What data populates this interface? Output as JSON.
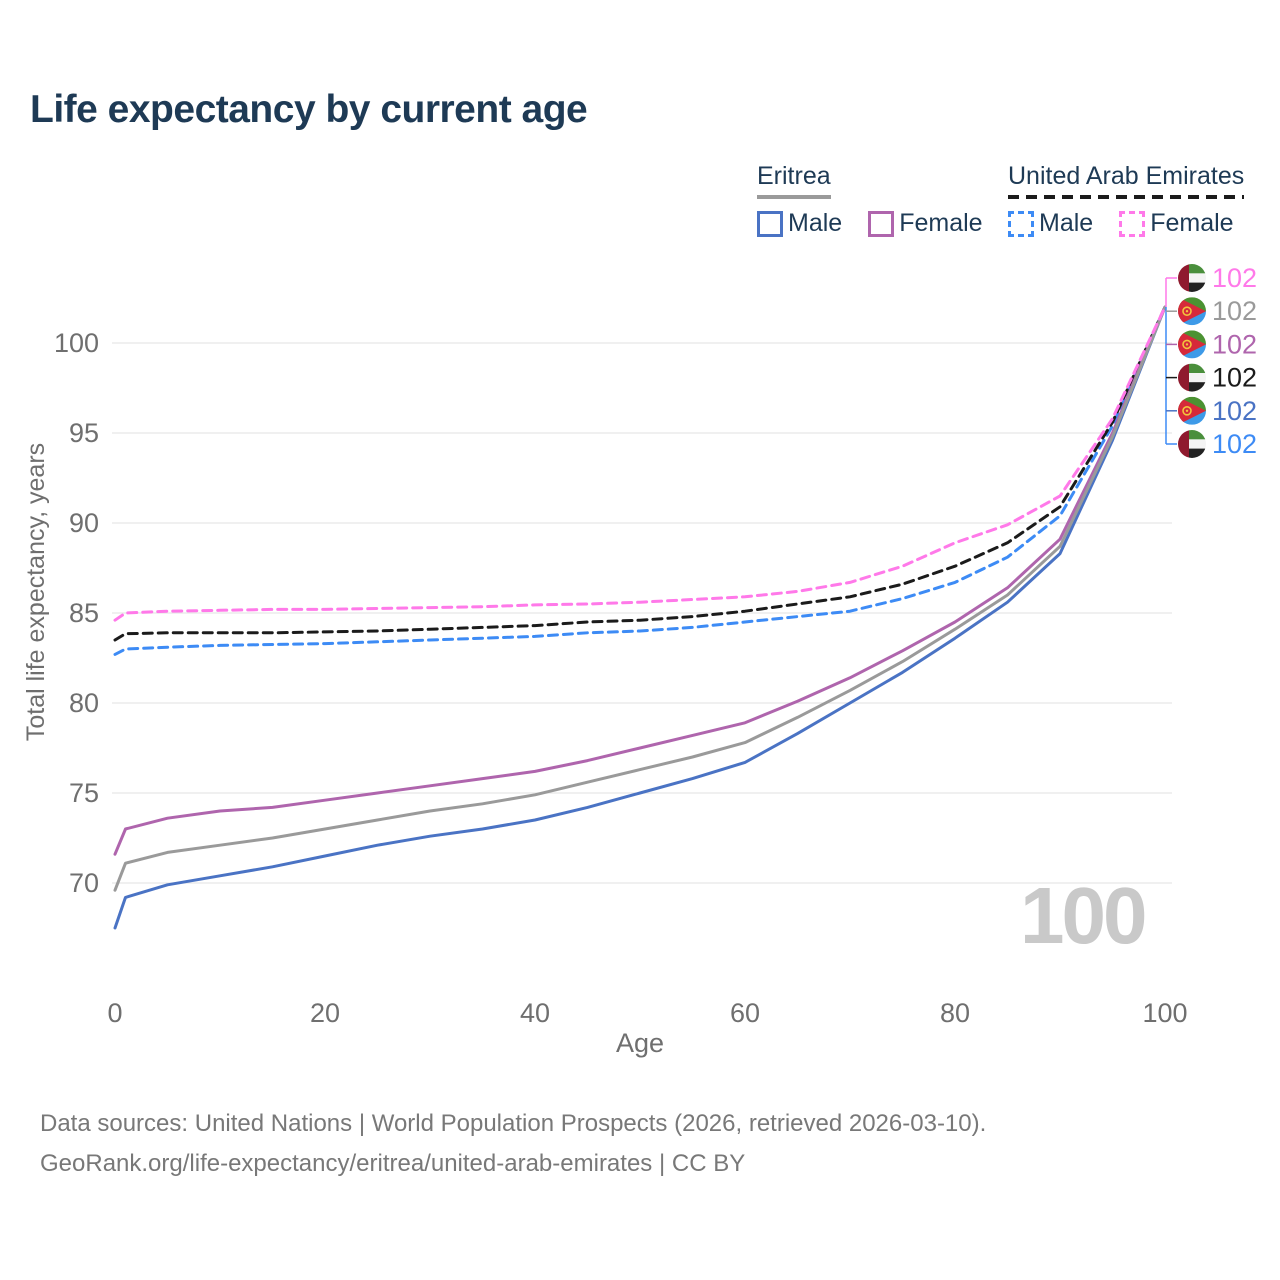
{
  "title": "Life expectancy by current age",
  "watermark": "100",
  "colors": {
    "title_text": "#1e3a55",
    "axis_text": "#6f6f6f",
    "grid": "#e7e7e7",
    "watermark": "#c9c9c9",
    "footer_text": "#787878",
    "eritrea_male": "#4a73c4",
    "eritrea_female": "#af65ad",
    "eritrea_all": "#9a9a9a",
    "uae_male": "#3d8bf5",
    "uae_female": "#ff79e9",
    "uae_all": "#1b1b1b"
  },
  "legend": {
    "groups": [
      {
        "name": "Eritrea",
        "line_style": "solid",
        "underline_color": "#9a9a9a",
        "items": [
          {
            "label": "Male",
            "color": "#4a73c4"
          },
          {
            "label": "Female",
            "color": "#af65ad"
          }
        ]
      },
      {
        "name": "United Arab Emirates",
        "line_style": "dashed",
        "underline_color": "#1b1b1b",
        "items": [
          {
            "label": "Male",
            "color": "#3d8bf5"
          },
          {
            "label": "Female",
            "color": "#ff79e9"
          }
        ]
      }
    ]
  },
  "footer": {
    "line1": "Data sources: United Nations | World Population Prospects (2026, retrieved 2026-03-10).",
    "line2": "GeoRank.org/life-expectancy/eritrea/united-arab-emirates | CC BY"
  },
  "chart_data": {
    "type": "line",
    "title": "Life expectancy by current age",
    "xlabel": "Age",
    "ylabel": "Total life expectancy, years",
    "xlim": [
      0,
      100
    ],
    "ylim": [
      67,
      103
    ],
    "xticks": [
      0,
      20,
      40,
      60,
      80,
      100
    ],
    "yticks": [
      70,
      75,
      80,
      85,
      90,
      95,
      100
    ],
    "grid": "horizontal-only",
    "legend_position": "top-right",
    "x": [
      0,
      1,
      5,
      10,
      15,
      20,
      25,
      30,
      35,
      40,
      45,
      50,
      55,
      60,
      65,
      70,
      75,
      80,
      85,
      90,
      95,
      100
    ],
    "series": [
      {
        "name": "United Arab Emirates Female",
        "country": "United Arab Emirates",
        "sex": "female",
        "color": "#ff79e9",
        "dashed": true,
        "flag": "uae",
        "end_label": "102",
        "values": [
          84.6,
          85.0,
          85.1,
          85.15,
          85.2,
          85.2,
          85.25,
          85.3,
          85.35,
          85.45,
          85.5,
          85.6,
          85.75,
          85.9,
          86.2,
          86.7,
          87.6,
          88.9,
          89.9,
          91.5,
          95.8,
          102
        ]
      },
      {
        "name": "Eritrea All",
        "country": "Eritrea",
        "sex": "all",
        "color": "#9a9a9a",
        "dashed": false,
        "flag": "eritrea",
        "end_label": "102",
        "values": [
          69.6,
          71.1,
          71.7,
          72.1,
          72.5,
          73.0,
          73.5,
          74.0,
          74.4,
          74.9,
          75.6,
          76.3,
          77.0,
          77.8,
          79.2,
          80.7,
          82.3,
          84.1,
          86.0,
          88.7,
          94.8,
          102
        ]
      },
      {
        "name": "Eritrea Female",
        "country": "Eritrea",
        "sex": "female",
        "color": "#af65ad",
        "dashed": false,
        "flag": "eritrea",
        "end_label": "102",
        "values": [
          71.6,
          73.0,
          73.6,
          74.0,
          74.2,
          74.6,
          75.0,
          75.4,
          75.8,
          76.2,
          76.8,
          77.5,
          78.2,
          78.9,
          80.1,
          81.4,
          82.9,
          84.5,
          86.4,
          89.1,
          95.0,
          102
        ]
      },
      {
        "name": "United Arab Emirates All",
        "country": "United Arab Emirates",
        "sex": "all",
        "color": "#1b1b1b",
        "dashed": true,
        "flag": "uae",
        "end_label": "102",
        "values": [
          83.5,
          83.85,
          83.9,
          83.9,
          83.9,
          83.95,
          84.0,
          84.1,
          84.2,
          84.3,
          84.5,
          84.6,
          84.8,
          85.1,
          85.5,
          85.9,
          86.6,
          87.6,
          88.9,
          90.9,
          95.6,
          102
        ]
      },
      {
        "name": "Eritrea Male",
        "country": "Eritrea",
        "sex": "male",
        "color": "#4a73c4",
        "dashed": false,
        "flag": "eritrea",
        "end_label": "102",
        "values": [
          67.5,
          69.2,
          69.9,
          70.4,
          70.9,
          71.5,
          72.1,
          72.6,
          73.0,
          73.5,
          74.2,
          75.0,
          75.8,
          76.7,
          78.3,
          80.0,
          81.7,
          83.6,
          85.6,
          88.3,
          94.6,
          102
        ]
      },
      {
        "name": "United Arab Emirates Male",
        "country": "United Arab Emirates",
        "sex": "male",
        "color": "#3d8bf5",
        "dashed": true,
        "flag": "uae",
        "end_label": "102",
        "values": [
          82.7,
          83.0,
          83.1,
          83.2,
          83.25,
          83.3,
          83.4,
          83.5,
          83.6,
          83.7,
          83.9,
          84.0,
          84.2,
          84.5,
          84.8,
          85.1,
          85.8,
          86.7,
          88.1,
          90.4,
          95.4,
          102
        ]
      }
    ]
  }
}
